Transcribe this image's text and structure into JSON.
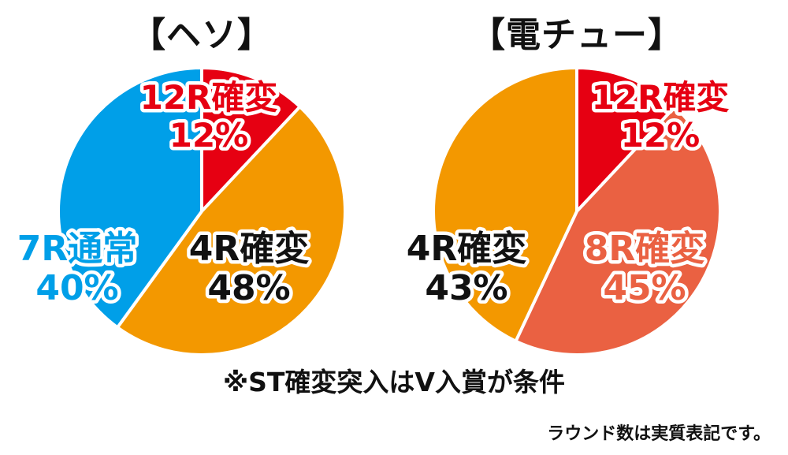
{
  "chart_data": [
    {
      "type": "pie",
      "title": "【ヘソ】",
      "slices": [
        {
          "label": "12R確変",
          "value": 12,
          "value_label": "12%",
          "color": "#e60012",
          "text_color": "#e60012"
        },
        {
          "label": "4R確変",
          "value": 48,
          "value_label": "48%",
          "color": "#f39800",
          "text_color": "#111111"
        },
        {
          "label": "7R通常",
          "value": 40,
          "value_label": "40%",
          "color": "#009fe8",
          "text_color": "#009fe8"
        }
      ]
    },
    {
      "type": "pie",
      "title": "【電チュー】",
      "slices": [
        {
          "label": "12R確変",
          "value": 12,
          "value_label": "12%",
          "color": "#e60012",
          "text_color": "#e60012"
        },
        {
          "label": "8R確変",
          "value": 45,
          "value_label": "45%",
          "color": "#ea6142",
          "text_color": "#ea6142"
        },
        {
          "label": "4R確変",
          "value": 43,
          "value_label": "43%",
          "color": "#f39800",
          "text_color": "#111111"
        }
      ]
    }
  ],
  "note": "※ST確変突入はV入賞が条件",
  "footnote": "ラウンド数は実質表記です。"
}
